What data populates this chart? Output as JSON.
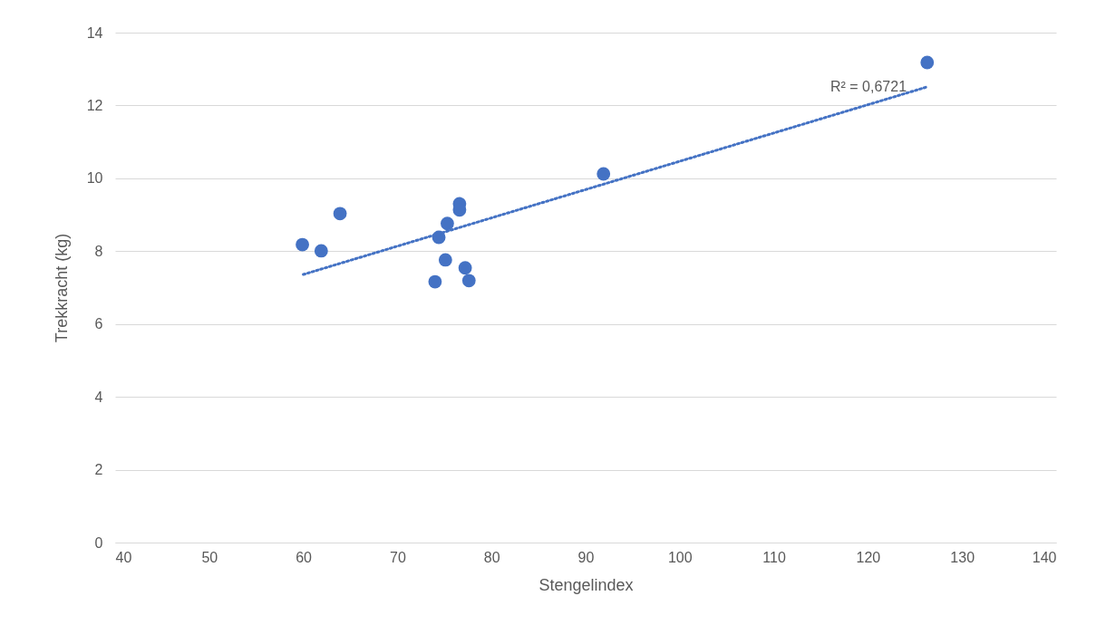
{
  "chart_data": {
    "type": "scatter",
    "xlabel": "Stengelindex",
    "ylabel": "Trekkracht (kg)",
    "xlim": [
      40,
      140
    ],
    "xticks": [
      40,
      50,
      60,
      70,
      80,
      90,
      100,
      110,
      120,
      130,
      140
    ],
    "ylim": [
      0,
      14
    ],
    "yticks": [
      0,
      2,
      4,
      6,
      8,
      10,
      12,
      14
    ],
    "grid": "y",
    "series": [
      {
        "color": "#4472c4",
        "x": [
          59.9,
          61.9,
          63.9,
          74.0,
          74.4,
          75.1,
          75.3,
          76.6,
          76.6,
          77.2,
          77.6,
          91.9,
          126.3
        ],
        "values": [
          8.18,
          8.01,
          9.03,
          7.16,
          8.38,
          7.76,
          8.76,
          9.3,
          9.13,
          7.54,
          7.19,
          10.12,
          13.18
        ]
      },
      {
        "type": "line",
        "color": "#4472c4",
        "line_style": "dotted",
        "x": [
          60,
          126.3
        ],
        "values": [
          7.36,
          12.51
        ]
      }
    ],
    "annotations": [
      "R² = 0,6721"
    ]
  }
}
